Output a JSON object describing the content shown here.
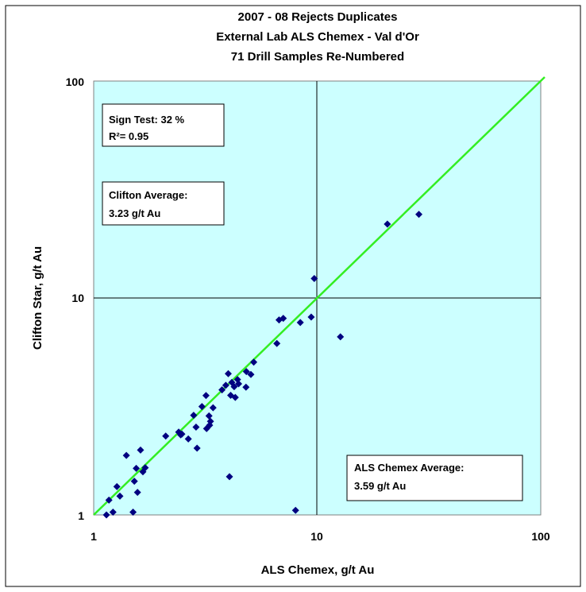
{
  "chart_data": {
    "type": "scatter",
    "title_lines": [
      "2007 -  08 Rejects Duplicates",
      "External Lab  ALS Chemex - Val d'Or",
      "71 Drill Samples Re-Numbered"
    ],
    "xlabel": "ALS Chemex, g/t Au",
    "ylabel": "Clifton Star, g/t Au",
    "x_scale": "log",
    "y_scale": "log",
    "xlim": [
      1,
      100
    ],
    "ylim": [
      1,
      100
    ],
    "x_ticks": [
      "1",
      "10",
      "100"
    ],
    "y_ticks": [
      "1",
      "10",
      "100"
    ],
    "grid": "major lines at 10 on both axes",
    "reference_line": "y = x",
    "colors": {
      "plot_background": "#ccffff",
      "points": "#000080",
      "reference_line": "#33ee22",
      "grid": "#000000"
    },
    "annotations": {
      "sign_test": [
        "Sign Test:   32 %",
        "R²= 0.95"
      ],
      "clifton_average": [
        "Clifton Average:",
        " 3.23  g/t Au"
      ],
      "als_average": [
        "ALS Chemex Average:",
        "3.59 g/t Au"
      ]
    },
    "points": [
      [
        1.14,
        1.0
      ],
      [
        1.17,
        1.17
      ],
      [
        1.22,
        1.03
      ],
      [
        1.27,
        1.35
      ],
      [
        1.31,
        1.22
      ],
      [
        1.4,
        1.88
      ],
      [
        1.5,
        1.03
      ],
      [
        1.52,
        1.43
      ],
      [
        1.55,
        1.64
      ],
      [
        1.57,
        1.27
      ],
      [
        1.62,
        1.99
      ],
      [
        1.66,
        1.58
      ],
      [
        1.7,
        1.65
      ],
      [
        2.1,
        2.31
      ],
      [
        2.4,
        2.41
      ],
      [
        2.45,
        2.34
      ],
      [
        2.48,
        2.36
      ],
      [
        2.65,
        2.24
      ],
      [
        2.8,
        2.88
      ],
      [
        2.87,
        2.54
      ],
      [
        2.9,
        2.03
      ],
      [
        3.05,
        3.16
      ],
      [
        3.18,
        3.55
      ],
      [
        3.2,
        2.5
      ],
      [
        3.28,
        2.86
      ],
      [
        3.3,
        2.59
      ],
      [
        3.33,
        2.7
      ],
      [
        3.42,
        3.12
      ],
      [
        3.75,
        3.77
      ],
      [
        3.9,
        3.96
      ],
      [
        4.0,
        4.48
      ],
      [
        4.05,
        1.5
      ],
      [
        4.1,
        3.56
      ],
      [
        4.15,
        4.08
      ],
      [
        4.25,
        3.9
      ],
      [
        4.3,
        3.48
      ],
      [
        4.4,
        4.21
      ],
      [
        4.45,
        4.02
      ],
      [
        4.8,
        3.88
      ],
      [
        4.82,
        4.58
      ],
      [
        5.05,
        4.44
      ],
      [
        5.2,
        5.06
      ],
      [
        6.6,
        6.17
      ],
      [
        6.75,
        7.92
      ],
      [
        7.05,
        8.06
      ],
      [
        8.0,
        1.05
      ],
      [
        8.4,
        7.71
      ],
      [
        9.4,
        8.17
      ],
      [
        9.7,
        12.3
      ],
      [
        12.7,
        6.62
      ],
      [
        20.6,
        21.9
      ],
      [
        28.5,
        24.3
      ]
    ]
  }
}
